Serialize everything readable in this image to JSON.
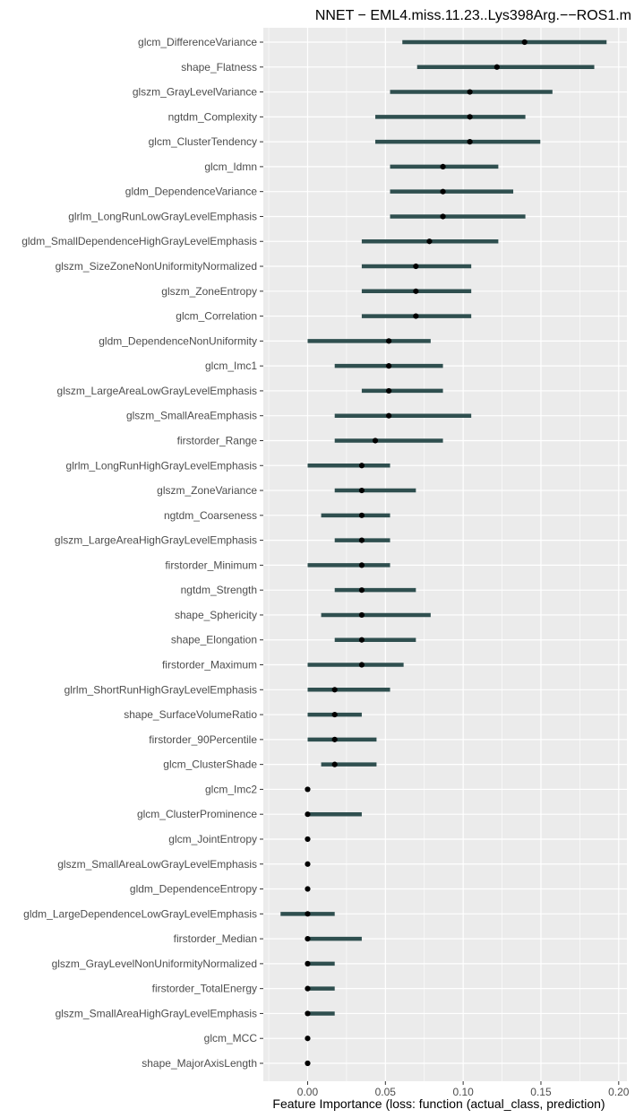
{
  "chart_data": {
    "type": "dot-interval",
    "title": "NNET − EML4.miss.11.23..Lys398Arg.−−ROS1.m",
    "xlabel": "Feature Importance (loss: function (actual_class, prediction)",
    "ylabel": "",
    "xlim": [
      -0.0285,
      0.2053
    ],
    "x_ticks": [
      0.0,
      0.05,
      0.1,
      0.15,
      0.2
    ],
    "x_tick_labels": [
      "0.00",
      "0.05",
      "0.10",
      "0.15",
      "0.20"
    ],
    "grid": true,
    "colors": {
      "interval": "#2f4f4f",
      "point": "#000000",
      "panel": "#ebebeb",
      "grid": "#ffffff"
    },
    "series": [
      {
        "features": [
          "glcm_DifferenceVariance",
          "shape_Flatness",
          "glszm_GrayLevelVariance",
          "ngtdm_Complexity",
          "glcm_ClusterTendency",
          "glcm_Idmn",
          "gldm_DependenceVariance",
          "glrlm_LongRunLowGrayLevelEmphasis",
          "gldm_SmallDependenceHighGrayLevelEmphasis",
          "glszm_SizeZoneNonUniformityNormalized",
          "glszm_ZoneEntropy",
          "glcm_Correlation",
          "gldm_DependenceNonUniformity",
          "glcm_Imc1",
          "glszm_LargeAreaLowGrayLevelEmphasis",
          "glszm_SmallAreaEmphasis",
          "firstorder_Range",
          "glrlm_LongRunHighGrayLevelEmphasis",
          "glszm_ZoneVariance",
          "ngtdm_Coarseness",
          "glszm_LargeAreaHighGrayLevelEmphasis",
          "firstorder_Minimum",
          "ngtdm_Strength",
          "shape_Sphericity",
          "shape_Elongation",
          "firstorder_Maximum",
          "glrlm_ShortRunHighGrayLevelEmphasis",
          "shape_SurfaceVolumeRatio",
          "firstorder_90Percentile",
          "glcm_ClusterShade",
          "glcm_Imc2",
          "glcm_ClusterProminence",
          "glcm_JointEntropy",
          "glszm_SmallAreaLowGrayLevelEmphasis",
          "gldm_DependenceEntropy",
          "gldm_LargeDependenceLowGrayLevelEmphasis",
          "firstorder_Median",
          "glszm_GrayLevelNonUniformityNormalized",
          "firstorder_TotalEnergy",
          "glszm_SmallAreaHighGrayLevelEmphasis",
          "glcm_MCC",
          "shape_MajorAxisLength"
        ],
        "median": [
          0.1395,
          0.1217,
          0.1043,
          0.1043,
          0.1043,
          0.087,
          0.087,
          0.087,
          0.0783,
          0.0696,
          0.0696,
          0.0696,
          0.0522,
          0.0522,
          0.0522,
          0.0522,
          0.0435,
          0.0348,
          0.0348,
          0.0348,
          0.0348,
          0.0348,
          0.0348,
          0.0348,
          0.0348,
          0.0348,
          0.0174,
          0.0174,
          0.0174,
          0.0174,
          0.0,
          0.0,
          0.0,
          0.0,
          0.0,
          0.0,
          0.0,
          0.0,
          0.0,
          0.0,
          0.0,
          0.0
        ],
        "lower": [
          0.0609,
          0.0704,
          0.053,
          0.0435,
          0.0435,
          0.053,
          0.053,
          0.053,
          0.0348,
          0.0348,
          0.0348,
          0.0348,
          0.0,
          0.0174,
          0.0348,
          0.0174,
          0.0174,
          0.0,
          0.0174,
          0.0087,
          0.0174,
          0.0,
          0.0174,
          0.0087,
          0.0174,
          0.0,
          0.0,
          0.0,
          0.0,
          0.0087,
          0.0,
          0.0,
          0.0,
          0.0,
          0.0,
          -0.0174,
          0.0,
          0.0,
          0.0,
          0.0,
          0.0,
          0.0
        ],
        "upper": [
          0.1922,
          0.1843,
          0.1574,
          0.14,
          0.1496,
          0.1226,
          0.1322,
          0.14,
          0.1226,
          0.1052,
          0.1052,
          0.1052,
          0.0791,
          0.087,
          0.087,
          0.1052,
          0.087,
          0.053,
          0.0696,
          0.053,
          0.053,
          0.053,
          0.0696,
          0.0791,
          0.0696,
          0.0617,
          0.053,
          0.0348,
          0.0443,
          0.0443,
          0.0,
          0.0348,
          0.0,
          0.0,
          0.0,
          0.0174,
          0.0348,
          0.0174,
          0.0174,
          0.0174,
          0.0,
          0.0
        ]
      }
    ]
  }
}
